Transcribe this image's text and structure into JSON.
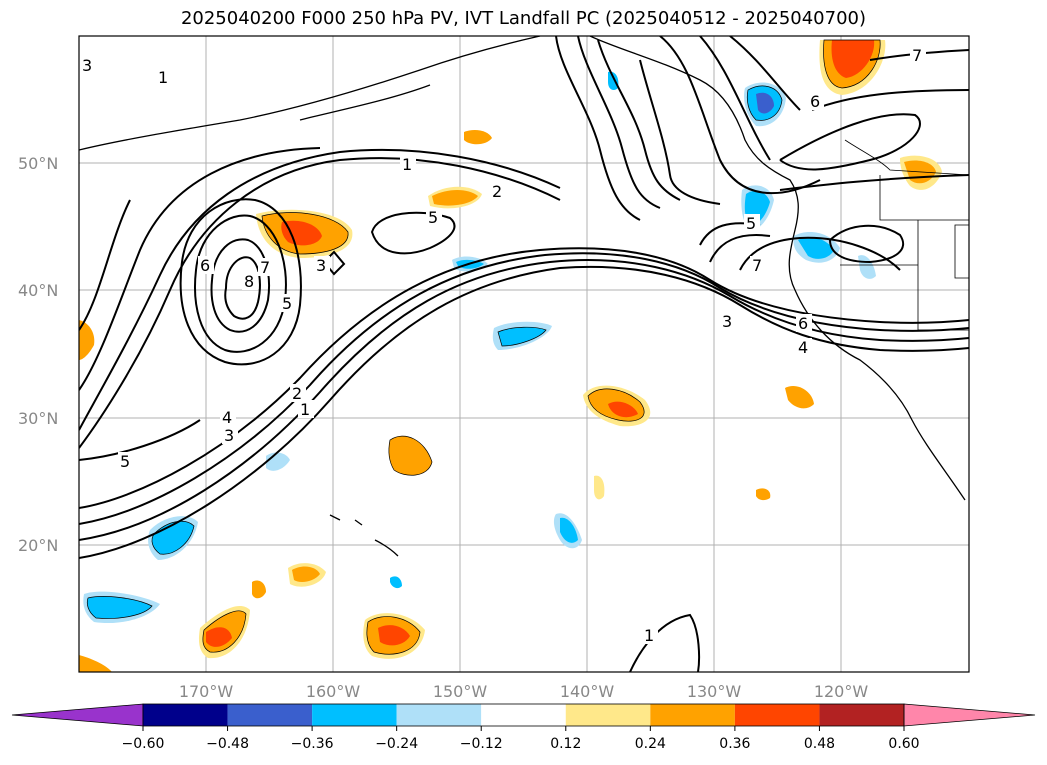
{
  "title": "2025040200 F000 250 hPa PV, IVT Landfall PC (2025040512 - 2025040700)",
  "lat_labels": [
    "50°N",
    "40°N",
    "30°N",
    "20°N"
  ],
  "lon_labels": [
    "170°W",
    "160°W",
    "150°W",
    "140°W",
    "130°W",
    "120°W"
  ],
  "colorbar": {
    "colors": [
      "#9933cc",
      "#00008b",
      "#3a5fcd",
      "#00bfff",
      "#afe0f8",
      "#ffffff",
      "#ffe88a",
      "#ffa200",
      "#ff4500",
      "#b22222",
      "#ff86aa"
    ],
    "ticks": [
      "−0.60",
      "−0.48",
      "−0.36",
      "−0.24",
      "−0.12",
      "0.12",
      "0.24",
      "0.36",
      "0.48",
      "0.60"
    ]
  },
  "contour_labels": [
    "1",
    "2",
    "3",
    "4",
    "5",
    "6",
    "7",
    "8"
  ]
}
